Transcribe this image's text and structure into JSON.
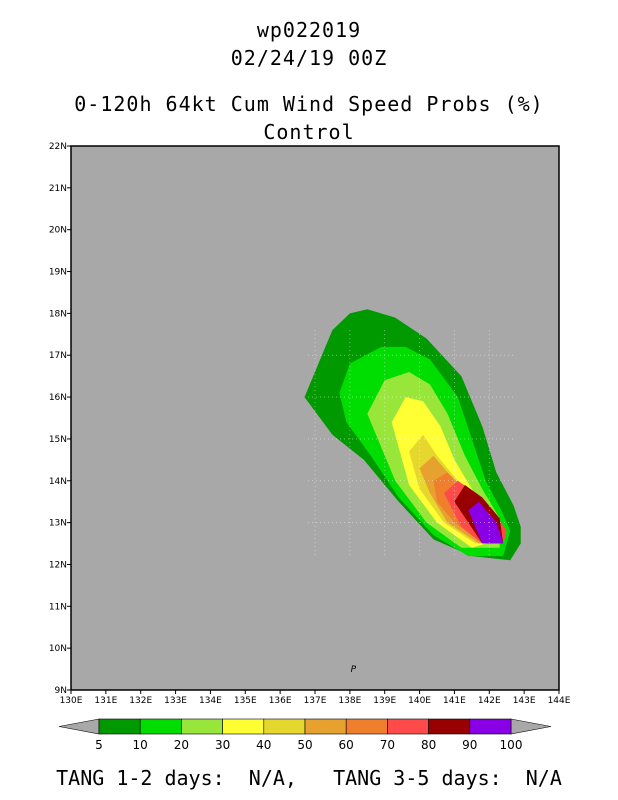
{
  "header": {
    "storm_id": "wp022019",
    "datetime": "02/24/19 00Z",
    "product": "0-120h 64kt Cum Wind Speed Probs (%)",
    "run": "Control"
  },
  "footer": {
    "tang_1_2_label": "TANG 1-2 days:",
    "tang_1_2_value": "N/A,",
    "tang_3_5_label": "TANG 3-5 days:",
    "tang_3_5_value": "N/A"
  },
  "chart_data": {
    "type": "filled-contour-map",
    "title": "0-120h 64kt Cum Wind Speed Probs (%)",
    "subtitle": "Control",
    "background_color": "#a8a8a8",
    "x_axis": {
      "range": [
        130,
        144
      ],
      "ticks": [
        "130E",
        "131E",
        "132E",
        "133E",
        "134E",
        "135E",
        "136E",
        "137E",
        "138E",
        "139E",
        "140E",
        "141E",
        "142E",
        "143E",
        "144E"
      ]
    },
    "y_axis": {
      "range": [
        9,
        22
      ],
      "ticks": [
        "9N",
        "10N",
        "11N",
        "12N",
        "13N",
        "14N",
        "15N",
        "16N",
        "17N",
        "18N",
        "19N",
        "20N",
        "21N",
        "22N"
      ]
    },
    "grid": "dotted, inside probability area",
    "marker": {
      "label": "P",
      "lon": 138.1,
      "lat": 9.5
    },
    "colorbar": {
      "levels": [
        "5",
        "10",
        "20",
        "30",
        "40",
        "50",
        "60",
        "70",
        "80",
        "90",
        "100"
      ],
      "colors": [
        "#009900",
        "#00dd00",
        "#99e63a",
        "#ffff33",
        "#e6d72e",
        "#e6a12e",
        "#ef7e2d",
        "#ff4a4a",
        "#990000",
        "#8a00e6"
      ]
    },
    "contours": [
      {
        "level": 5,
        "color": "#009900",
        "polygon": [
          [
            136.7,
            16.0
          ],
          [
            137.5,
            17.6
          ],
          [
            138.0,
            18.0
          ],
          [
            138.5,
            18.1
          ],
          [
            139.3,
            17.9
          ],
          [
            140.2,
            17.4
          ],
          [
            141.2,
            16.5
          ],
          [
            141.8,
            15.3
          ],
          [
            142.2,
            14.2
          ],
          [
            142.7,
            13.4
          ],
          [
            142.9,
            12.9
          ],
          [
            142.9,
            12.5
          ],
          [
            142.6,
            12.1
          ],
          [
            141.5,
            12.2
          ],
          [
            140.4,
            12.6
          ],
          [
            139.4,
            13.5
          ],
          [
            138.4,
            14.5
          ],
          [
            137.5,
            15.1
          ]
        ]
      },
      {
        "level": 10,
        "color": "#00dd00",
        "polygon": [
          [
            137.7,
            16.1
          ],
          [
            138.0,
            16.8
          ],
          [
            138.9,
            17.2
          ],
          [
            139.6,
            17.2
          ],
          [
            140.3,
            16.9
          ],
          [
            141.1,
            16.0
          ],
          [
            141.5,
            15.0
          ],
          [
            141.9,
            14.0
          ],
          [
            142.4,
            13.2
          ],
          [
            142.6,
            12.8
          ],
          [
            142.4,
            12.2
          ],
          [
            141.4,
            12.2
          ],
          [
            140.4,
            12.7
          ],
          [
            139.4,
            13.6
          ],
          [
            138.6,
            14.6
          ],
          [
            137.9,
            15.4
          ]
        ]
      },
      {
        "level": 20,
        "color": "#99e63a",
        "polygon": [
          [
            138.5,
            15.6
          ],
          [
            139.0,
            16.4
          ],
          [
            139.7,
            16.6
          ],
          [
            140.3,
            16.3
          ],
          [
            140.8,
            15.6
          ],
          [
            141.3,
            14.6
          ],
          [
            141.8,
            13.8
          ],
          [
            142.3,
            13.1
          ],
          [
            142.3,
            12.4
          ],
          [
            141.2,
            12.4
          ],
          [
            140.2,
            13.0
          ],
          [
            139.3,
            14.0
          ]
        ]
      },
      {
        "level": 30,
        "color": "#ffff33",
        "polygon": [
          [
            139.2,
            15.4
          ],
          [
            139.6,
            16.0
          ],
          [
            140.1,
            15.9
          ],
          [
            140.6,
            15.3
          ],
          [
            141.0,
            14.5
          ],
          [
            141.5,
            13.8
          ],
          [
            142.0,
            13.2
          ],
          [
            142.3,
            12.6
          ],
          [
            141.5,
            12.4
          ],
          [
            140.5,
            13.0
          ],
          [
            139.7,
            13.9
          ]
        ]
      },
      {
        "level": 40,
        "color": "#e6d72e",
        "polygon": [
          [
            139.7,
            14.7
          ],
          [
            140.1,
            15.1
          ],
          [
            140.5,
            14.6
          ],
          [
            140.9,
            14.2
          ],
          [
            141.4,
            13.7
          ],
          [
            142.0,
            13.2
          ],
          [
            142.3,
            12.6
          ],
          [
            141.6,
            12.5
          ],
          [
            140.7,
            13.0
          ],
          [
            140.0,
            13.8
          ]
        ]
      },
      {
        "level": 50,
        "color": "#e6a12e",
        "polygon": [
          [
            140.0,
            14.3
          ],
          [
            140.4,
            14.6
          ],
          [
            140.8,
            14.2
          ],
          [
            141.3,
            13.8
          ],
          [
            141.9,
            13.3
          ],
          [
            142.4,
            12.7
          ],
          [
            141.7,
            12.5
          ],
          [
            140.8,
            13.0
          ],
          [
            140.3,
            13.7
          ]
        ]
      },
      {
        "level": 60,
        "color": "#ef7e2d",
        "polygon": [
          [
            140.4,
            14.0
          ],
          [
            140.8,
            14.2
          ],
          [
            141.2,
            13.8
          ],
          [
            141.8,
            13.4
          ],
          [
            142.4,
            12.8
          ],
          [
            141.8,
            12.5
          ],
          [
            141.0,
            13.0
          ],
          [
            140.5,
            13.5
          ]
        ]
      },
      {
        "level": 70,
        "color": "#ff4a4a",
        "polygon": [
          [
            140.7,
            13.7
          ],
          [
            141.1,
            14.0
          ],
          [
            141.6,
            13.7
          ],
          [
            142.1,
            13.3
          ],
          [
            142.5,
            12.8
          ],
          [
            142.4,
            12.5
          ],
          [
            141.8,
            12.5
          ],
          [
            141.2,
            12.9
          ]
        ]
      },
      {
        "level": 80,
        "color": "#990000",
        "polygon": [
          [
            141.0,
            13.5
          ],
          [
            141.3,
            13.9
          ],
          [
            141.8,
            13.6
          ],
          [
            142.3,
            13.1
          ],
          [
            142.4,
            12.5
          ],
          [
            141.8,
            12.5
          ]
        ]
      },
      {
        "level": 90,
        "color": "#8a00e6",
        "polygon": [
          [
            141.4,
            13.3
          ],
          [
            141.7,
            13.5
          ],
          [
            142.2,
            13.0
          ],
          [
            142.4,
            12.5
          ],
          [
            141.8,
            12.5
          ]
        ]
      }
    ]
  }
}
